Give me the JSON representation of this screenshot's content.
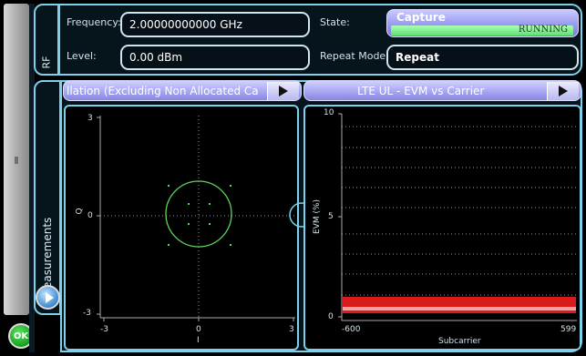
{
  "rf": {
    "tab_label": "RF",
    "frequency_label": "Frequency:",
    "frequency_value": "2.00000000000 GHz",
    "level_label": "Level:",
    "level_value": "0.00 dBm",
    "state_label": "State:",
    "state_button_label": "Capture",
    "state_status": "RUNNING",
    "repeat_label": "Repeat Mode:",
    "repeat_value": "Repeat"
  },
  "measurements": {
    "tab_label": "Measurements",
    "left_view_title": "llation (Excluding Non Allocated Ca",
    "right_view_title": "LTE UL - EVM vs Carrier"
  },
  "constellation": {
    "y_label": "Q",
    "x_label": "I",
    "y_ticks": [
      "3",
      "0",
      "-3"
    ],
    "x_ticks": [
      "-3",
      "0",
      "3"
    ]
  },
  "evm": {
    "y_label": "EVM (%)",
    "x_label": "Subcarrier",
    "y_ticks": [
      "10",
      "5",
      "0"
    ],
    "x_ticks": [
      "-600",
      "599"
    ]
  },
  "ok_label": "OK",
  "colors": {
    "accent_border": "#7fd0ea",
    "header": "#a7a7f2",
    "running": "#5fe070",
    "trace": "#ff2020"
  }
}
